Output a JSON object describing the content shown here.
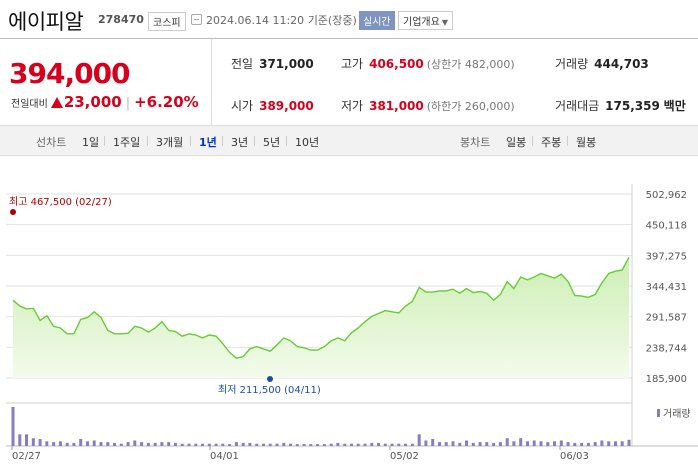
{
  "header": {
    "name": "에이피알",
    "code": "278470",
    "market": "코스피",
    "datetime": "2024.06.14 11:20",
    "basis": "기준(장중)",
    "realtime_label": "실시간",
    "company_btn_label": "기업개요"
  },
  "price": {
    "current": "394,000",
    "compare_label": "전일대비",
    "change_amount": "23,000",
    "change_rate": "+6.20%",
    "direction": "up"
  },
  "stats": {
    "prev_close": {
      "label": "전일",
      "value": "371,000"
    },
    "high": {
      "label": "고가",
      "value": "406,500",
      "sub": "(상한가 482,000)"
    },
    "volume": {
      "label": "거래량",
      "value": "444,703"
    },
    "open": {
      "label": "시가",
      "value": "389,000"
    },
    "low": {
      "label": "저가",
      "value": "381,000",
      "sub": "(하한가 260,000)"
    },
    "amount": {
      "label": "거래대금",
      "value": "175,359",
      "unit": "백만"
    }
  },
  "tabs": {
    "line_chart_label": "선차트",
    "line_periods": [
      "1일",
      "1주일",
      "3개월",
      "1년",
      "3년",
      "5년",
      "10년"
    ],
    "active_period": "1년",
    "candle_chart_label": "봉차트",
    "candle_periods": [
      "일봉",
      "주봉",
      "월봉"
    ]
  },
  "colors": {
    "up": "#d6001c",
    "line": "#66cc33",
    "fill": "#e6f7d6",
    "volume_bar": "#8a7cc0",
    "low_marker": "#1a4da8",
    "high_marker": "#b00000"
  },
  "chart_data": {
    "type": "area",
    "ylim": [
      185900,
      502962
    ],
    "yticks": [
      "502,962",
      "450,118",
      "397,275",
      "344,431",
      "291,587",
      "238,744",
      "185,900"
    ],
    "xticks": [
      "02/27",
      "04/01",
      "05/02",
      "06/03"
    ],
    "high_annotation": "최고 467,500 (02/27)",
    "low_annotation": "최저 211,500 (04/11)",
    "volume_legend": "거래량",
    "values": [
      320000,
      310000,
      305000,
      306000,
      285000,
      293000,
      275000,
      272000,
      262000,
      262000,
      287000,
      290000,
      300000,
      290000,
      268000,
      262000,
      262000,
      263000,
      275000,
      272000,
      265000,
      272000,
      283000,
      268000,
      266000,
      258000,
      262000,
      260000,
      255000,
      260000,
      258000,
      245000,
      230000,
      220000,
      223000,
      236000,
      240000,
      236000,
      232000,
      243000,
      255000,
      250000,
      240000,
      238000,
      234000,
      234000,
      240000,
      250000,
      255000,
      250000,
      264000,
      272000,
      283000,
      292000,
      297000,
      302000,
      300000,
      298000,
      310000,
      318000,
      342000,
      334000,
      334000,
      336000,
      336000,
      339000,
      332000,
      340000,
      333000,
      335000,
      332000,
      320000,
      330000,
      352000,
      340000,
      360000,
      355000,
      360000,
      366000,
      362000,
      358000,
      365000,
      352000,
      328000,
      327000,
      325000,
      330000,
      350000,
      366000,
      370000,
      372000,
      394000
    ],
    "volume": [
      100,
      30,
      30,
      20,
      18,
      12,
      10,
      12,
      8,
      8,
      18,
      12,
      14,
      10,
      10,
      8,
      6,
      10,
      14,
      10,
      8,
      8,
      10,
      10,
      8,
      6,
      6,
      6,
      6,
      6,
      6,
      6,
      5,
      10,
      8,
      8,
      6,
      6,
      6,
      6,
      8,
      6,
      5,
      5,
      5,
      5,
      5,
      6,
      8,
      6,
      6,
      6,
      6,
      8,
      8,
      6,
      6,
      6,
      6,
      6,
      30,
      14,
      18,
      10,
      10,
      12,
      8,
      14,
      8,
      10,
      10,
      8,
      10,
      20,
      12,
      20,
      12,
      14,
      12,
      10,
      12,
      14,
      10,
      8,
      8,
      8,
      10,
      14,
      12,
      12,
      12,
      16
    ]
  }
}
